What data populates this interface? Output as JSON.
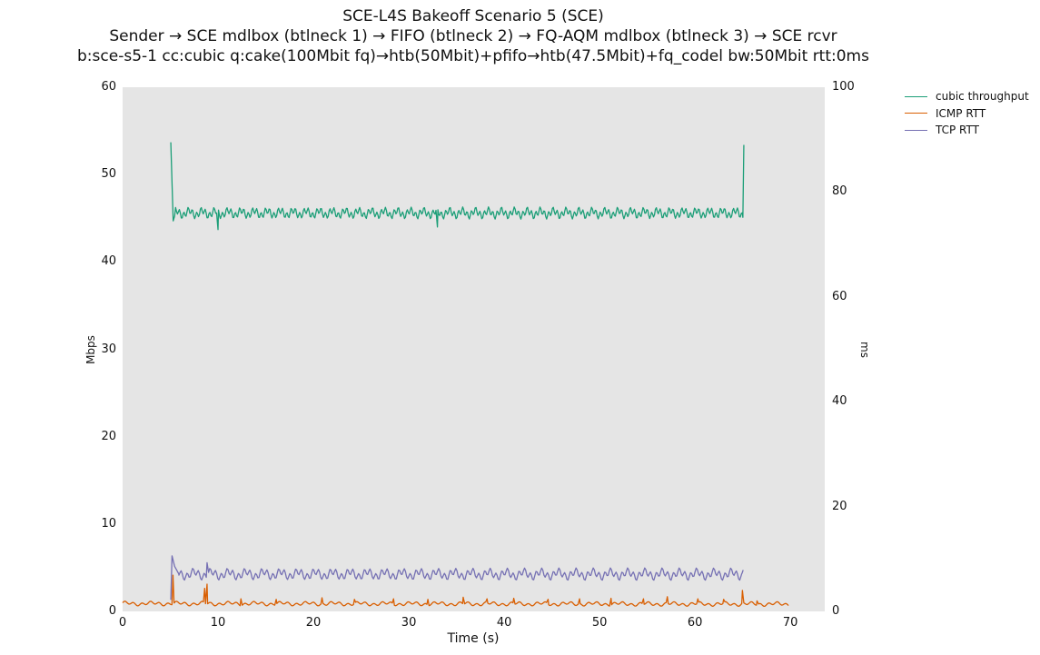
{
  "chart_data": {
    "type": "line",
    "title": "SCE-L4S Bakeoff Scenario 5 (SCE)",
    "subtitle_lines": [
      "Sender → SCE mdlbox (btlneck 1) → FIFO (btlneck 2) → FQ-AQM mdlbox (btlneck 3) → SCE rcvr",
      "b:sce-s5-1 cc:cubic q:cake(100Mbit fq)→htb(50Mbit)+pfifo→htb(47.5Mbit)+fq_codel bw:50Mbit rtt:0ms"
    ],
    "xlabel": "Time (s)",
    "ylabel_left": "Mbps",
    "ylabel_right": "ms",
    "xlim": [
      0,
      73.6
    ],
    "x_ticks": [
      0,
      10,
      20,
      30,
      40,
      50,
      60,
      70
    ],
    "ylim_left": [
      0,
      60
    ],
    "yticks_left": [
      0,
      10,
      20,
      30,
      40,
      50,
      60
    ],
    "ylim_right": [
      0,
      100
    ],
    "yticks_right": [
      0,
      20,
      40,
      60,
      80,
      100
    ],
    "grid": false,
    "plot_background": "#e5e5e5",
    "figure_background": "#ffffff",
    "legend_position": "top-right-outside",
    "series": [
      {
        "name": "cubic throughput",
        "axis": "left",
        "unit": "Mbps",
        "color": "#1b9e77",
        "summary": {
          "start_s": 5.05,
          "end_s": 65.12,
          "initial_peak_mbps": 53.7,
          "steady_mean_mbps": 45.6,
          "oscillation_low_mbps": 44.9,
          "oscillation_high_mbps": 46.3,
          "notable_dip": {
            "t_s": 10.0,
            "mbps": 43.7
          },
          "final_peak_mbps": 53.4
        },
        "base_anchors": [
          [
            5.05,
            53.7
          ],
          [
            5.3,
            44.7
          ],
          [
            5.55,
            45.6
          ],
          [
            64.95,
            45.6
          ],
          [
            65.02,
            45.1
          ],
          [
            65.12,
            53.4
          ]
        ],
        "wiggle": {
          "t0": 5.55,
          "t1": 64.95,
          "amp": 0.7,
          "period": 0.45
        },
        "pops": [
          [
            10.0,
            43.7
          ],
          [
            33.0,
            44.0
          ]
        ],
        "dt": 0.1
      },
      {
        "name": "TCP RTT",
        "axis": "right",
        "unit": "ms",
        "color": "#7570b3",
        "summary": {
          "start_s": 5.05,
          "end_s": 65.05,
          "initial_peak_ms": 10.6,
          "steady_mean_ms": 7.1,
          "oscillation_low_ms": 5.9,
          "oscillation_high_ms": 8.3,
          "secondary_spike": {
            "t_s": 8.85,
            "ms": 9.3
          }
        },
        "base_anchors": [
          [
            5.05,
            2.2
          ],
          [
            5.18,
            10.6
          ],
          [
            5.45,
            8.6
          ],
          [
            5.9,
            7.1
          ],
          [
            64.9,
            7.1
          ],
          [
            65.05,
            7.9
          ]
        ],
        "wiggle": {
          "t0": 5.9,
          "t1": 64.9,
          "amp": 1.2,
          "period": 0.6
        },
        "pops": [
          [
            8.85,
            9.3
          ]
        ],
        "dt": 0.12
      },
      {
        "name": "ICMP RTT",
        "axis": "right",
        "unit": "ms",
        "color": "#d95f02",
        "summary": {
          "start_s": 0.0,
          "end_s": 69.8,
          "steady_mean_ms": 1.5,
          "noise_low_ms": 1.0,
          "noise_high_ms": 2.2,
          "spikes": [
            {
              "t_s": 5.28,
              "ms": 6.9
            },
            {
              "t_s": 8.6,
              "ms": 4.4
            },
            {
              "t_s": 8.85,
              "ms": 5.2
            },
            {
              "t_s": 65.0,
              "ms": 4.0
            }
          ]
        },
        "base_anchors": [
          [
            0,
            1.5
          ],
          [
            69.8,
            1.4
          ]
        ],
        "wiggle": {
          "t0": 0,
          "t1": 69.8,
          "amp": 0.45,
          "period": 0.9
        },
        "pops": [
          [
            5.28,
            6.9
          ],
          [
            8.6,
            4.4
          ],
          [
            8.85,
            5.2
          ],
          [
            12.4,
            2.4
          ],
          [
            16.1,
            2.3
          ],
          [
            20.9,
            2.6
          ],
          [
            24.3,
            2.3
          ],
          [
            28.4,
            2.4
          ],
          [
            32.0,
            2.3
          ],
          [
            35.7,
            2.7
          ],
          [
            38.2,
            2.4
          ],
          [
            41.0,
            2.5
          ],
          [
            44.6,
            2.3
          ],
          [
            47.9,
            2.4
          ],
          [
            51.2,
            2.5
          ],
          [
            54.6,
            2.4
          ],
          [
            57.1,
            2.8
          ],
          [
            60.3,
            2.4
          ],
          [
            63.0,
            2.3
          ],
          [
            64.97,
            4.0
          ],
          [
            66.5,
            2.0
          ]
        ],
        "dt": 0.11
      }
    ]
  },
  "legend": {
    "entries": [
      {
        "label": "cubic throughput",
        "color": "#1b9e77"
      },
      {
        "label": "ICMP RTT",
        "color": "#d95f02"
      },
      {
        "label": "TCP RTT",
        "color": "#7570b3"
      }
    ]
  }
}
